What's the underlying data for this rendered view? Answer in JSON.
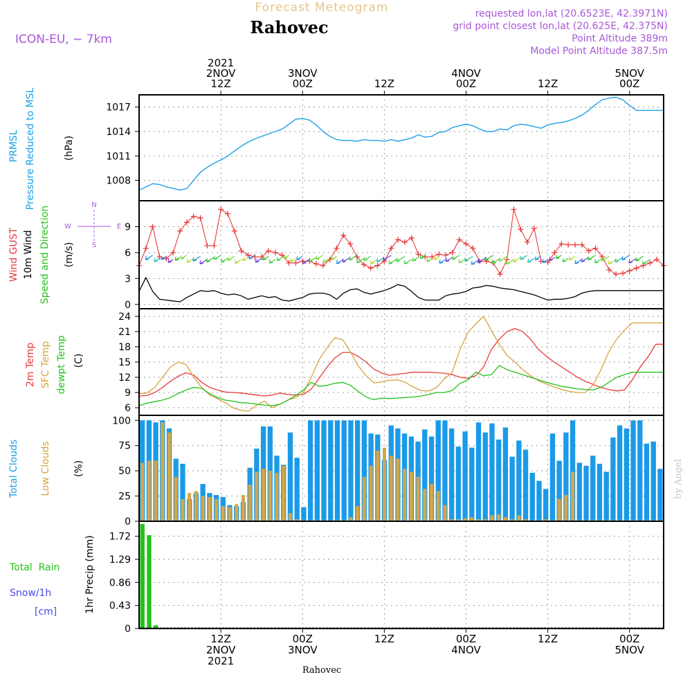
{
  "header": {
    "subtitle": "Forecast Meteogram",
    "location": "Rahovec",
    "model": "ICON-EU, ~ 7km",
    "requested": "requested lon,lat (20.6523E, 42.3971N)",
    "grid_point": "grid point closest lon,lat (20.625E, 42.375N)",
    "point_altitude": "Point Altitude 389m",
    "model_altitude": "Model Point Altitude 387.5m",
    "footer_location": "Rahovec",
    "credit": "by Angel"
  },
  "time_axis": {
    "top_labels": [
      {
        "hour": 12,
        "lines": [
          "2021",
          "2NOV",
          "12Z"
        ]
      },
      {
        "hour": 24,
        "lines": [
          "3NOV",
          "00Z"
        ]
      },
      {
        "hour": 36,
        "lines": [
          "12Z"
        ]
      },
      {
        "hour": 48,
        "lines": [
          "4NOV",
          "00Z"
        ]
      },
      {
        "hour": 60,
        "lines": [
          "12Z"
        ]
      },
      {
        "hour": 72,
        "lines": [
          "5NOV",
          "00Z"
        ]
      }
    ],
    "bottom_labels": [
      {
        "hour": 12,
        "lines": [
          "12Z",
          "2NOV",
          "2021"
        ]
      },
      {
        "hour": 24,
        "lines": [
          "00Z",
          "3NOV"
        ]
      },
      {
        "hour": 36,
        "lines": [
          "12Z"
        ]
      },
      {
        "hour": 48,
        "lines": [
          "00Z",
          "4NOV"
        ]
      },
      {
        "hour": 60,
        "lines": [
          "12Z"
        ]
      },
      {
        "hour": 72,
        "lines": [
          "00Z",
          "5NOV"
        ]
      }
    ],
    "xlim": [
      0,
      77
    ]
  },
  "panel_labels": {
    "pressure": {
      "line1": "PRMSL",
      "line2": "Pressure Reduced to MSL",
      "unit": "(hPa)"
    },
    "wind": {
      "gust": "Wind GUST",
      "wind10": "10m Wind",
      "speed_dir": "Speed and Direction",
      "unit": "(m/s)",
      "compass_n": "N",
      "compass_s": "S",
      "compass_w": "W",
      "compass_e": "E"
    },
    "temp": {
      "t2m": "2m Temp",
      "sfc": "SFC Temp",
      "dewpt": "dewpt Temp",
      "unit": "(C)"
    },
    "clouds": {
      "total": "Total Clouds",
      "low": "Low Clouds",
      "unit": "(%)"
    },
    "precip": {
      "rain": "Total  Rain",
      "snow": "Snow/1h",
      "snow_unit": "[cm]",
      "axis": "1hr Precip (mm)"
    }
  },
  "colors": {
    "pressure": "#1aa0e8",
    "gust": "#e83a3a",
    "wind": "#000000",
    "t2m": "#e83a3a",
    "sfc": "#d8a23a",
    "dewpt": "#22c21a",
    "total_clouds": "#1a9ae8",
    "low_clouds": "#d4a64a",
    "rain": "#22c21a",
    "snow": "#4a4ae8",
    "label_purple": "#a857d8",
    "label_gold": "#e0b070"
  },
  "chart_data": [
    {
      "type": "line",
      "panel": "pressure",
      "ylabel": "(hPa)",
      "yticks": [
        1008,
        1011,
        1014,
        1017
      ],
      "ylim": [
        1005.5,
        1018.5
      ],
      "series": [
        {
          "x": [
            0,
            1,
            2,
            3,
            4,
            5,
            6,
            7,
            8,
            9,
            10,
            11,
            12,
            13,
            14,
            15,
            16,
            17,
            18,
            19,
            20,
            21,
            22,
            23,
            24,
            25,
            26,
            27,
            28,
            29,
            30,
            31,
            32,
            33,
            34,
            35,
            36,
            37,
            38,
            39,
            40,
            41,
            42,
            43,
            44,
            45,
            46,
            47,
            48,
            49,
            50,
            51,
            52,
            53,
            54,
            55,
            56,
            57,
            58,
            59,
            60,
            61,
            62,
            63,
            64,
            65,
            66,
            67,
            68,
            69,
            70,
            71,
            72,
            73,
            74,
            75,
            76,
            77
          ],
          "values": [
            1006.8,
            1007.2,
            1007.6,
            1007.5,
            1007.2,
            1007.0,
            1006.8,
            1007.0,
            1008.0,
            1009.0,
            1009.6,
            1010.1,
            1010.5,
            1011.0,
            1011.6,
            1012.2,
            1012.7,
            1013.1,
            1013.4,
            1013.7,
            1014.0,
            1014.3,
            1014.9,
            1015.5,
            1015.6,
            1015.4,
            1014.8,
            1014.0,
            1013.4,
            1013.0,
            1012.9,
            1012.9,
            1012.8,
            1013.0,
            1012.9,
            1012.9,
            1012.8,
            1013.0,
            1012.8,
            1013.0,
            1013.2,
            1013.6,
            1013.3,
            1013.4,
            1013.9,
            1014.0,
            1014.5,
            1014.7,
            1014.9,
            1014.7,
            1014.3,
            1014.0,
            1014.0,
            1014.3,
            1014.2,
            1014.7,
            1014.9,
            1014.8,
            1014.6,
            1014.4,
            1014.8,
            1015.0,
            1015.1,
            1015.3,
            1015.6,
            1016.0,
            1016.6,
            1017.3,
            1017.9,
            1018.1,
            1018.2,
            1017.9,
            1017.2,
            1016.6,
            1016.6,
            1016.6,
            1016.6,
            1016.6
          ]
        }
      ]
    },
    {
      "type": "line",
      "panel": "wind",
      "ylabel": "(m/s)",
      "yticks": [
        0,
        3,
        6,
        9
      ],
      "ylim": [
        -0.5,
        12
      ],
      "series": [
        {
          "key": "gust",
          "values": [
            4.5,
            6.5,
            9.0,
            5.5,
            5.3,
            6.0,
            8.5,
            9.5,
            10.2,
            10.0,
            6.8,
            6.8,
            11.0,
            10.5,
            8.5,
            6.2,
            5.7,
            5.5,
            5.5,
            6.2,
            6.0,
            5.7,
            4.8,
            4.8,
            5.0,
            5.0,
            4.7,
            4.5,
            5.2,
            6.5,
            8.0,
            7.0,
            5.5,
            4.6,
            4.2,
            4.5,
            5.0,
            6.5,
            7.5,
            7.2,
            7.7,
            5.8,
            5.5,
            5.5,
            5.8,
            5.7,
            6.0,
            7.5,
            7.0,
            6.5,
            5.0,
            5.0,
            4.8,
            3.5,
            5.2,
            11.0,
            8.7,
            7.2,
            8.8,
            5.0,
            4.9,
            6.0,
            7.0,
            6.9,
            6.9,
            6.9,
            6.2,
            6.5,
            5.5,
            4.0,
            3.5,
            3.6,
            3.9,
            4.2,
            4.5,
            4.8,
            5.2,
            4.5
          ]
        },
        {
          "key": "wind10",
          "values": [
            1.5,
            3.1,
            1.5,
            0.6,
            0.5,
            0.4,
            0.3,
            0.8,
            1.2,
            1.6,
            1.5,
            1.6,
            1.3,
            1.1,
            1.2,
            1.0,
            0.6,
            0.8,
            1.0,
            0.8,
            0.9,
            0.5,
            0.4,
            0.6,
            0.8,
            1.2,
            1.3,
            1.3,
            1.1,
            0.6,
            1.3,
            1.7,
            1.8,
            1.4,
            1.2,
            1.4,
            1.6,
            1.9,
            2.3,
            2.1,
            1.5,
            0.8,
            0.5,
            0.5,
            0.5,
            1.0,
            1.2,
            1.3,
            1.5,
            1.9,
            2.0,
            2.2,
            2.1,
            1.9,
            1.8,
            1.7,
            1.5,
            1.3,
            1.1,
            0.8,
            0.5,
            0.6,
            0.6,
            0.7,
            0.9,
            1.3,
            1.5,
            1.6,
            1.6,
            1.6,
            1.6,
            1.6,
            1.6,
            1.6,
            1.6,
            1.6,
            1.6,
            1.6
          ]
        }
      ]
    },
    {
      "type": "line",
      "panel": "temperature",
      "ylabel": "(C)",
      "yticks": [
        6,
        9,
        12,
        15,
        18,
        21,
        24
      ],
      "ylim": [
        4.5,
        25.5
      ],
      "series": [
        {
          "key": "t2m",
          "values": [
            8.3,
            8.4,
            9.0,
            10.0,
            11.2,
            12.2,
            12.9,
            12.4,
            11.0,
            10.0,
            9.5,
            9.1,
            9.0,
            8.9,
            8.7,
            8.5,
            8.3,
            8.5,
            8.9,
            8.6,
            8.5,
            8.6,
            9.7,
            11.8,
            14.0,
            15.8,
            16.9,
            16.9,
            16.1,
            15.0,
            13.6,
            12.8,
            12.4,
            12.6,
            12.8,
            13.0,
            13.0,
            13.0,
            12.9,
            12.8,
            12.5,
            12.0,
            11.8,
            12.3,
            14.0,
            17.5,
            19.5,
            21.0,
            21.6,
            21.0,
            19.5,
            17.5,
            16.2,
            15.0,
            14.0,
            13.0,
            12.0,
            11.2,
            10.6,
            10.0,
            9.6,
            9.3,
            9.5,
            11.5,
            14.0,
            16.0,
            18.5,
            18.5
          ]
        },
        {
          "key": "sfc",
          "values": [
            8.8,
            8.9,
            10.0,
            12.0,
            14.0,
            15.0,
            14.5,
            12.0,
            10.0,
            8.5,
            7.8,
            7.0,
            6.0,
            5.5,
            5.3,
            6.5,
            7.3,
            6.0,
            6.7,
            7.5,
            8.0,
            9.0,
            12.0,
            15.5,
            17.8,
            19.8,
            19.4,
            17.0,
            14.2,
            12.3,
            10.9,
            11.1,
            11.4,
            11.5,
            11.0,
            10.1,
            9.4,
            9.3,
            10.0,
            11.7,
            13.0,
            17.5,
            20.8,
            22.5,
            24.0,
            21.2,
            18.5,
            16.3,
            15.0,
            13.5,
            12.3,
            11.3,
            10.7,
            10.1,
            9.6,
            9.2,
            9.0,
            9.0,
            10.5,
            13.5,
            17.0,
            19.5,
            21.3,
            22.7,
            22.7,
            22.7,
            22.7,
            22.7
          ]
        },
        {
          "key": "dewpt",
          "values": [
            6.4,
            6.9,
            7.2,
            7.5,
            8.0,
            8.8,
            9.5,
            10.0,
            9.8,
            8.8,
            8.0,
            7.5,
            7.3,
            7.0,
            6.9,
            6.7,
            6.5,
            6.4,
            6.7,
            7.5,
            8.4,
            9.5,
            11.0,
            10.2,
            10.4,
            10.8,
            11.0,
            10.4,
            9.2,
            8.1,
            7.6,
            7.9,
            7.8,
            7.9,
            8.0,
            8.1,
            8.3,
            8.6,
            9.0,
            9.0,
            9.4,
            10.8,
            11.5,
            13.0,
            12.3,
            12.5,
            14.3,
            13.5,
            13.0,
            12.5,
            12.0,
            11.5,
            11.0,
            10.6,
            10.2,
            10.0,
            9.7,
            9.6,
            9.5,
            10.0,
            11.0,
            12.0,
            12.5,
            13.0,
            13.0,
            13.0,
            13.0,
            13.0
          ]
        }
      ]
    },
    {
      "type": "bar",
      "panel": "clouds",
      "ylabel": "(%)",
      "yticks": [
        0,
        25,
        50,
        75,
        100
      ],
      "ylim": [
        0,
        105
      ],
      "series": [
        {
          "key": "total_clouds",
          "values": [
            100,
            100,
            98,
            100,
            92,
            62,
            57,
            22,
            28,
            37,
            28,
            26,
            24,
            16,
            15,
            19,
            53,
            72,
            94,
            94,
            65,
            56,
            88,
            63,
            14,
            100,
            100,
            100,
            100,
            100,
            100,
            100,
            100,
            100,
            87,
            86,
            61,
            95,
            92,
            87,
            84,
            79,
            91,
            84,
            100,
            100,
            92,
            74,
            89,
            73,
            98,
            88,
            97,
            81,
            93,
            64,
            80,
            71,
            48,
            40,
            32,
            87,
            60,
            88,
            100,
            58,
            55,
            65,
            57,
            49,
            83,
            95,
            92,
            100,
            100,
            77,
            79,
            52
          ]
        },
        {
          "key": "low_clouds",
          "values": [
            58,
            60,
            60,
            98,
            88,
            44,
            22,
            28,
            30,
            25,
            24,
            22,
            15,
            14,
            17,
            26,
            36,
            49,
            52,
            50,
            48,
            55,
            8,
            2,
            1,
            1,
            1,
            1,
            1,
            1,
            1,
            4,
            15,
            44,
            55,
            70,
            73,
            65,
            62,
            52,
            49,
            44,
            32,
            37,
            30,
            16,
            2,
            2,
            3,
            4,
            2,
            2,
            6,
            7,
            4,
            2,
            6,
            2,
            1,
            1,
            2,
            1,
            22,
            26,
            49,
            1,
            1,
            1,
            1,
            1,
            1,
            1,
            1,
            1,
            1,
            1,
            1,
            1
          ]
        }
      ]
    },
    {
      "type": "bar",
      "panel": "precipitation",
      "ylabel": "1hr Precip (mm)",
      "yticks": [
        0,
        0.43,
        0.86,
        1.29,
        1.72
      ],
      "ylim": [
        0,
        2.0
      ],
      "series": [
        {
          "key": "rain",
          "values": [
            1.95,
            1.74,
            0.06,
            0,
            0,
            0,
            0,
            0,
            0,
            0,
            0,
            0,
            0,
            0,
            0,
            0,
            0,
            0,
            0,
            0,
            0,
            0,
            0,
            0,
            0,
            0,
            0,
            0,
            0,
            0,
            0,
            0,
            0,
            0,
            0,
            0,
            0,
            0,
            0,
            0,
            0,
            0,
            0,
            0,
            0,
            0,
            0,
            0,
            0,
            0,
            0,
            0,
            0,
            0,
            0,
            0,
            0,
            0,
            0,
            0.01,
            0,
            0,
            0,
            0,
            0,
            0,
            0,
            0,
            0,
            0,
            0,
            0,
            0,
            0,
            0,
            0,
            0,
            0
          ]
        }
      ]
    }
  ]
}
